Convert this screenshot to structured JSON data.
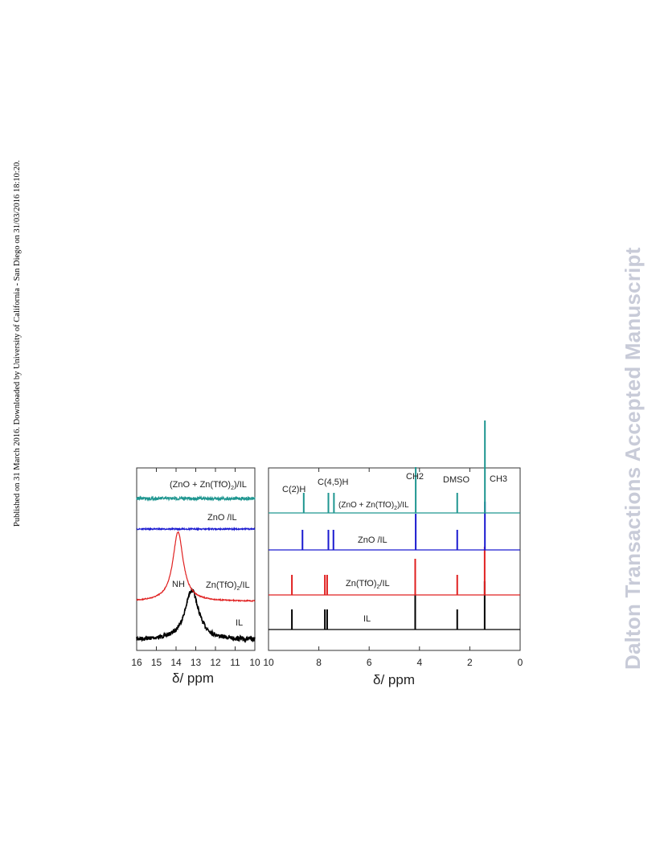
{
  "side_note": "Published on 31 March 2016. Downloaded by University of California - San Diego on 31/03/2016 18:10:20.",
  "watermark": "Dalton Transactions Accepted Manuscript",
  "colors": {
    "IL": "#000000",
    "ZnTfO2_IL": "#e02020",
    "ZnO_IL": "#1a1ad0",
    "ZnO_ZnTfO2_IL": "#1f9690",
    "watermark": "#c8cbd8"
  },
  "chart_data": [
    {
      "type": "line",
      "panel": "left",
      "xlabel": "δ/ ppm",
      "xlim": [
        16,
        10
      ],
      "x_reversed": true,
      "xticks": [
        "16",
        "15",
        "14",
        "13",
        "12",
        "11",
        "10"
      ],
      "grid": false,
      "series": [
        {
          "name": "IL",
          "peak_center": 13.2,
          "peak_label": "NH"
        },
        {
          "name": "Zn(TfO)2/IL",
          "peak_center": 13.9
        },
        {
          "name": "ZnO /IL",
          "peak_center": null
        },
        {
          "name": "(ZnO + Zn(TfO)2)/IL",
          "peak_center": null
        }
      ],
      "labels": [
        "NH",
        "IL",
        "Zn(TfO)2/IL",
        "ZnO /IL",
        "(ZnO + Zn(TfO)2)/IL"
      ]
    },
    {
      "type": "line",
      "panel": "right",
      "xlabel": "δ/ ppm",
      "xlim": [
        10,
        0
      ],
      "x_reversed": true,
      "xticks": [
        "10",
        "8",
        "6",
        "4",
        "2",
        "0"
      ],
      "grid": false,
      "peak_labels": [
        {
          "text": "C(2)H",
          "x": 9.0
        },
        {
          "text": "C(4,5)H",
          "x": 7.7
        },
        {
          "text": "CH2",
          "x": 4.15
        },
        {
          "text": "DMSO",
          "x": 2.5
        },
        {
          "text": "CH3",
          "x": 1.4
        }
      ],
      "series": [
        {
          "name": "IL",
          "peaks": [
            9.07,
            7.76,
            7.67,
            4.17,
            2.5,
            1.41
          ]
        },
        {
          "name": "Zn(TfO)2/IL",
          "peaks": [
            9.07,
            7.76,
            7.67,
            4.17,
            2.5,
            1.41
          ]
        },
        {
          "name": "ZnO /IL",
          "peaks": [
            8.65,
            7.62,
            7.42,
            4.15,
            2.5,
            1.4
          ]
        },
        {
          "name": "(ZnO + Zn(TfO)2)/IL",
          "peaks": [
            8.6,
            7.62,
            7.4,
            4.15,
            2.5,
            1.4
          ]
        }
      ]
    }
  ]
}
